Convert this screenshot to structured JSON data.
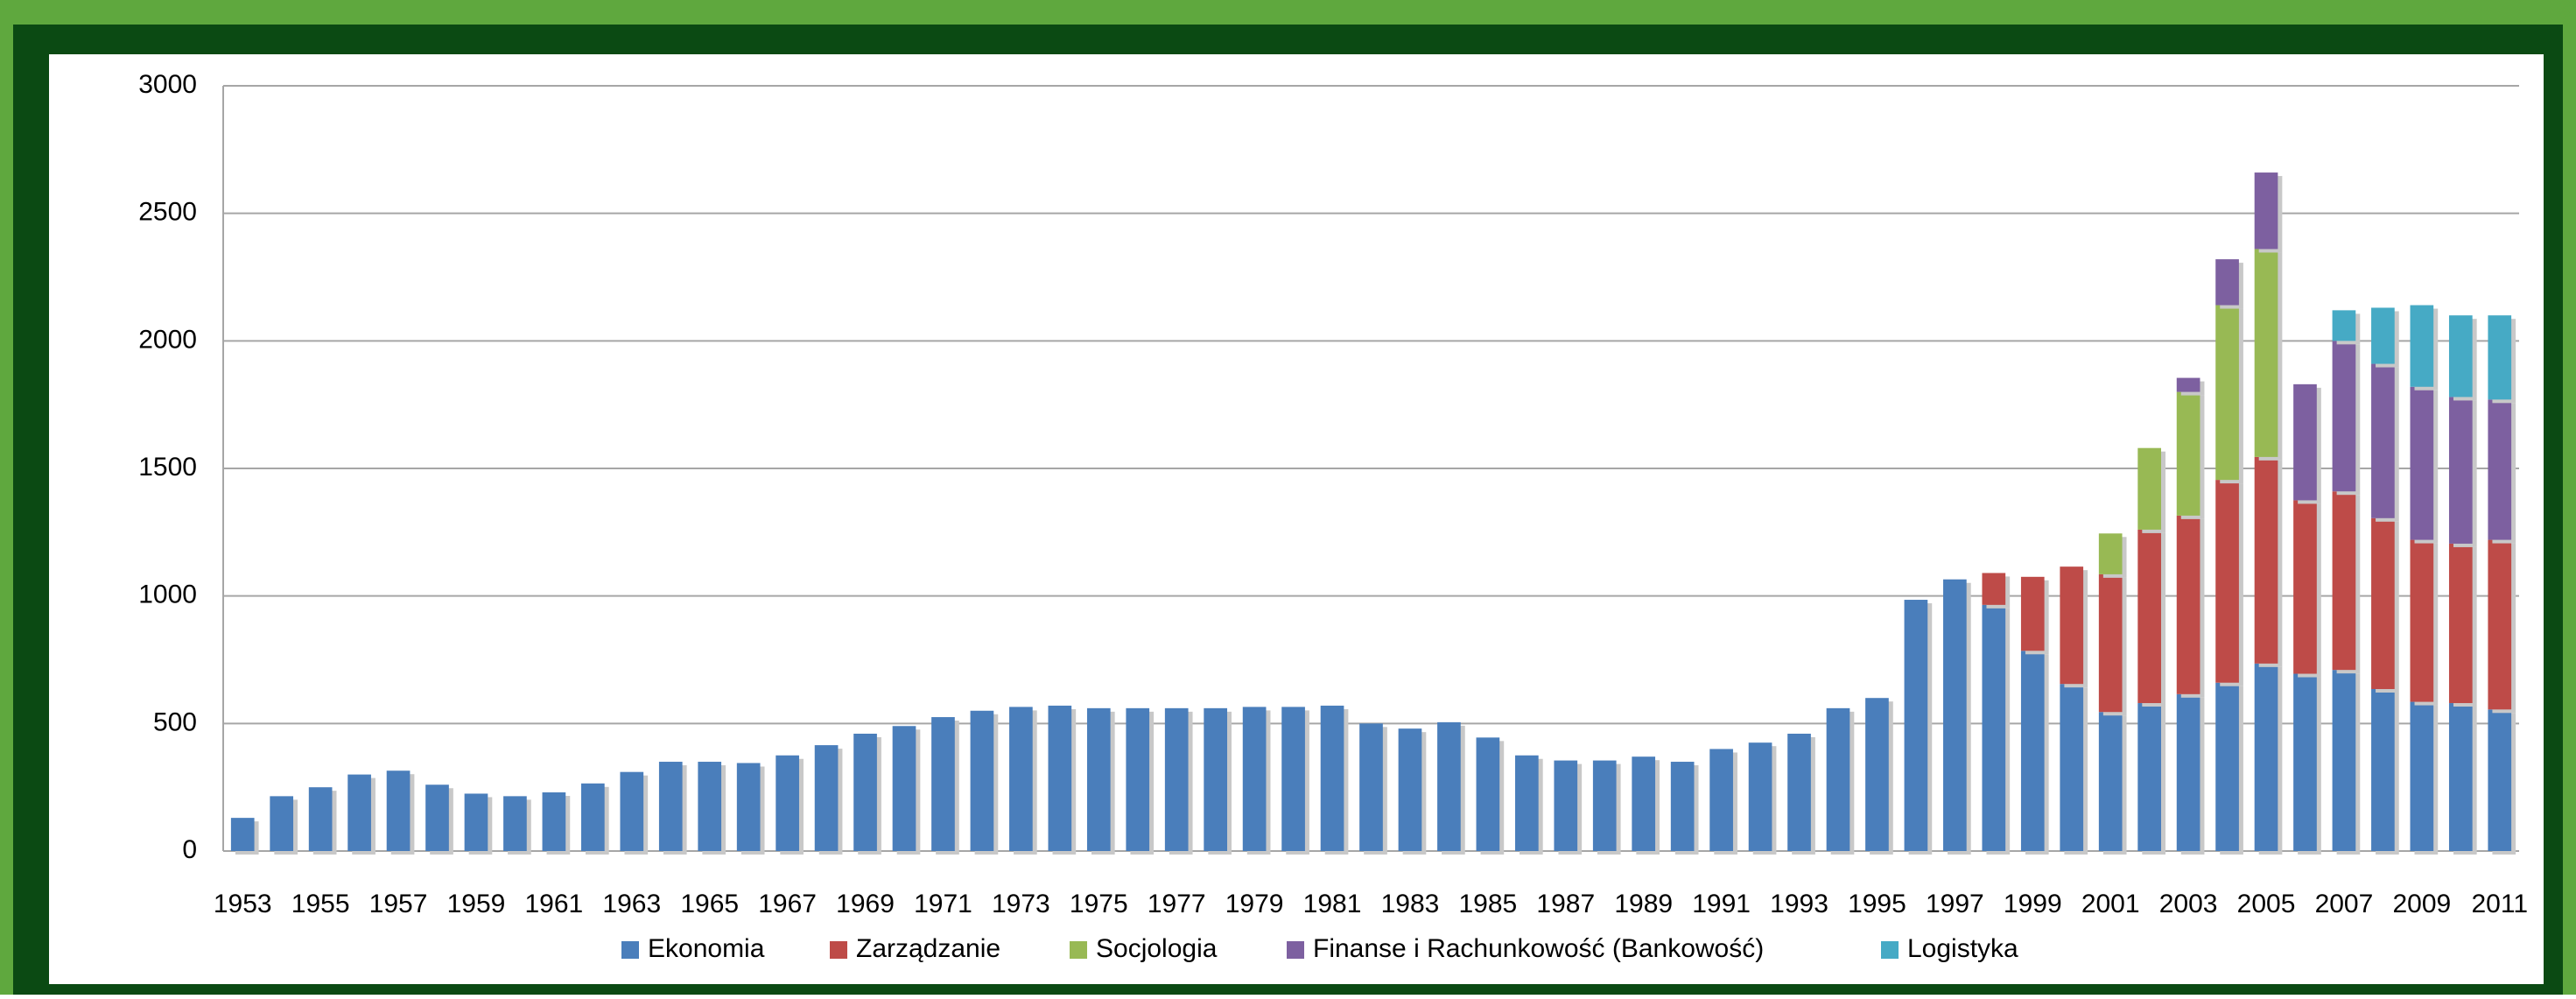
{
  "chart_data": {
    "type": "bar",
    "stacked": true,
    "categories": [
      1953,
      null,
      1955,
      null,
      1957,
      null,
      1959,
      null,
      1961,
      null,
      1963,
      null,
      1965,
      null,
      1967,
      null,
      1969,
      null,
      1971,
      null,
      1973,
      null,
      1975,
      null,
      1977,
      null,
      1979,
      null,
      1981,
      null,
      1983,
      null,
      1985,
      null,
      1987,
      null,
      1989,
      null,
      1991,
      null,
      1993,
      null,
      1995,
      null,
      1997,
      null,
      1999,
      null,
      2001,
      null,
      2003,
      null,
      2005,
      null,
      2007,
      null,
      2009,
      null,
      2011
    ],
    "series": [
      {
        "name": "Ekonomia",
        "color": "#4a7ebb",
        "values": [
          130,
          215,
          250,
          300,
          315,
          260,
          225,
          215,
          230,
          265,
          310,
          350,
          350,
          345,
          375,
          415,
          460,
          490,
          525,
          550,
          565,
          570,
          560,
          560,
          560,
          560,
          565,
          565,
          570,
          500,
          480,
          505,
          445,
          375,
          355,
          355,
          370,
          350,
          400,
          425,
          460,
          560,
          600,
          985,
          1065,
          965,
          785,
          655,
          545,
          580,
          615,
          660,
          735,
          695,
          710,
          635,
          585,
          580,
          555
        ]
      },
      {
        "name": "Zarządzanie",
        "color": "#be4b48",
        "values": [
          null,
          null,
          null,
          null,
          null,
          null,
          null,
          null,
          null,
          null,
          null,
          null,
          null,
          null,
          null,
          null,
          null,
          null,
          null,
          null,
          null,
          null,
          null,
          null,
          null,
          null,
          null,
          null,
          null,
          null,
          null,
          null,
          null,
          null,
          null,
          null,
          null,
          null,
          null,
          null,
          null,
          null,
          null,
          null,
          null,
          125,
          290,
          460,
          540,
          680,
          700,
          795,
          810,
          680,
          700,
          670,
          635,
          625,
          665
        ]
      },
      {
        "name": "Socjologia",
        "color": "#98b954",
        "values": [
          null,
          null,
          null,
          null,
          null,
          null,
          null,
          null,
          null,
          null,
          null,
          null,
          null,
          null,
          null,
          null,
          null,
          null,
          null,
          null,
          null,
          null,
          null,
          null,
          null,
          null,
          null,
          null,
          null,
          null,
          null,
          null,
          null,
          null,
          null,
          null,
          null,
          null,
          null,
          null,
          null,
          null,
          null,
          null,
          null,
          null,
          null,
          null,
          160,
          320,
          485,
          685,
          815,
          null,
          null,
          null,
          null,
          null,
          null
        ]
      },
      {
        "name": "Finanse i Rachunkowość (Bankowość)",
        "color": "#7d60a0",
        "values": [
          null,
          null,
          null,
          null,
          null,
          null,
          null,
          null,
          null,
          null,
          null,
          null,
          null,
          null,
          null,
          null,
          null,
          null,
          null,
          null,
          null,
          null,
          null,
          null,
          null,
          null,
          null,
          null,
          null,
          null,
          null,
          null,
          null,
          null,
          null,
          null,
          null,
          null,
          null,
          null,
          null,
          null,
          null,
          null,
          null,
          null,
          null,
          null,
          null,
          null,
          55,
          180,
          300,
          455,
          590,
          605,
          600,
          575,
          550
        ]
      },
      {
        "name": "Logistyka",
        "color": "#46aac5",
        "values": [
          null,
          null,
          null,
          null,
          null,
          null,
          null,
          null,
          null,
          null,
          null,
          null,
          null,
          null,
          null,
          null,
          null,
          null,
          null,
          null,
          null,
          null,
          null,
          null,
          null,
          null,
          null,
          null,
          null,
          null,
          null,
          null,
          null,
          null,
          null,
          null,
          null,
          null,
          null,
          null,
          null,
          null,
          null,
          null,
          null,
          null,
          null,
          null,
          null,
          null,
          null,
          null,
          null,
          null,
          120,
          220,
          320,
          320,
          330
        ]
      }
    ],
    "ylim": [
      0,
      3000
    ],
    "yticks": [
      0,
      500,
      1000,
      1500,
      2000,
      2500,
      3000
    ],
    "grid": true,
    "legend": "bottom"
  }
}
